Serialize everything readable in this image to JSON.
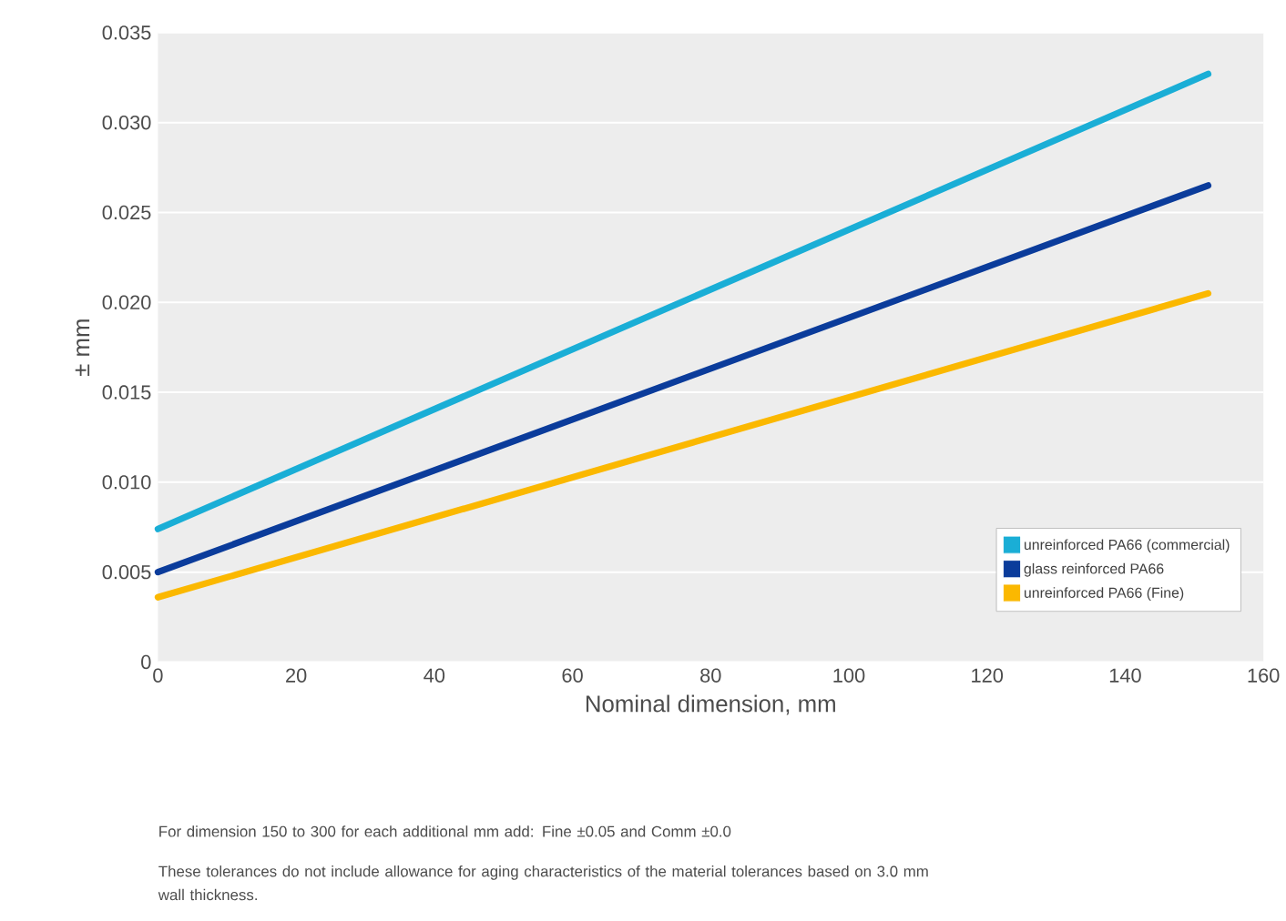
{
  "chart_data": {
    "type": "line",
    "xlabel": "Nominal dimension, mm",
    "ylabel": "± mm",
    "x": [
      0,
      152
    ],
    "series": [
      {
        "name": "unreinforced PA66 (commercial)",
        "color": "#1aaed6",
        "values": [
          0.0074,
          0.0327
        ]
      },
      {
        "name": "glass reinforced PA66",
        "color": "#0b3c9b",
        "values": [
          0.005,
          0.0265
        ]
      },
      {
        "name": "unreinforced PA66 (Fine)",
        "color": "#fbb800",
        "values": [
          0.0036,
          0.0205
        ]
      }
    ],
    "xlim": [
      0,
      160
    ],
    "xticks": [
      0,
      20,
      40,
      60,
      80,
      100,
      120,
      140,
      160
    ],
    "ylim": [
      0,
      0.035
    ],
    "yticks": [
      {
        "value": 0,
        "label": "0"
      },
      {
        "value": 0.005,
        "label": "0.005"
      },
      {
        "value": 0.01,
        "label": "0.010"
      },
      {
        "value": 0.015,
        "label": "0.015"
      },
      {
        "value": 0.02,
        "label": "0.020"
      },
      {
        "value": 0.025,
        "label": "0.025"
      },
      {
        "value": 0.03,
        "label": "0.030"
      },
      {
        "value": 0.035,
        "label": "0.035"
      }
    ],
    "grid": "y",
    "legend": "bottom right",
    "marker": "none",
    "line_style": "solid",
    "annotations": [
      "For dimension 150 to 300 for each additional mm add: Fine ±0.05 and Comm ±0.0",
      "These tolerances do not include allowance for aging characteristics of the material tolerances based on 3.0 mm wall thickness."
    ]
  }
}
